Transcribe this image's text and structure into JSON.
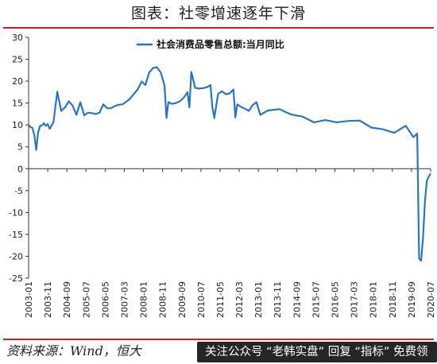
{
  "title": "图表：社零增速逐年下滑",
  "source": "资料来源：Wind，恒大",
  "watermark": "关注公众号 “老韩实盘” 回复 “指标” 免费领",
  "colors": {
    "line": "#2e75b6",
    "accent": "#c8202a",
    "watermark_bg": "#262626"
  },
  "chart_data": {
    "type": "line",
    "ylim": [
      -25,
      30
    ],
    "yticks": [
      30,
      25,
      20,
      15,
      10,
      5,
      0,
      -5,
      -10,
      -15,
      -20,
      -25
    ],
    "x_range": [
      "2003-01",
      "2020-07"
    ],
    "xticks": [
      "2003-01",
      "2003-11",
      "2004-09",
      "2005-07",
      "2006-05",
      "2007-03",
      "2008-01",
      "2008-11",
      "2009-09",
      "2010-07",
      "2011-05",
      "2012-03",
      "2013-01",
      "2013-11",
      "2014-09",
      "2015-07",
      "2016-05",
      "2017-03",
      "2018-01",
      "2018-11",
      "2019-09",
      "2020-07"
    ],
    "grid": false,
    "legend_position": "top",
    "series": [
      {
        "name": "社会消费品零售总额:当月同比",
        "x": [
          "2003-01",
          "2003-02",
          "2003-03",
          "2003-04",
          "2003-05",
          "2003-06",
          "2003-07",
          "2003-08",
          "2003-09",
          "2003-10",
          "2003-11",
          "2003-12",
          "2004-02",
          "2004-04",
          "2004-06",
          "2004-08",
          "2004-10",
          "2004-12",
          "2005-02",
          "2005-04",
          "2005-06",
          "2005-08",
          "2005-10",
          "2005-12",
          "2006-02",
          "2006-04",
          "2006-06",
          "2006-08",
          "2006-10",
          "2006-12",
          "2007-02",
          "2007-04",
          "2007-06",
          "2007-08",
          "2007-10",
          "2007-12",
          "2008-02",
          "2008-04",
          "2008-06",
          "2008-08",
          "2008-10",
          "2008-12",
          "2009-01",
          "2009-02",
          "2009-04",
          "2009-06",
          "2009-08",
          "2009-10",
          "2009-12",
          "2010-01",
          "2010-02",
          "2010-04",
          "2010-06",
          "2010-08",
          "2010-10",
          "2010-12",
          "2011-01",
          "2011-02",
          "2011-04",
          "2011-06",
          "2011-08",
          "2011-10",
          "2011-12",
          "2012-01",
          "2012-02",
          "2012-04",
          "2012-06",
          "2012-08",
          "2012-10",
          "2012-12",
          "2013-02",
          "2013-06",
          "2013-12",
          "2014-06",
          "2014-12",
          "2015-06",
          "2015-12",
          "2016-06",
          "2016-12",
          "2017-06",
          "2017-12",
          "2018-06",
          "2018-12",
          "2019-06",
          "2019-10",
          "2019-12",
          "2020-01",
          "2020-02",
          "2020-03",
          "2020-04",
          "2020-05",
          "2020-06",
          "2020-07"
        ],
        "values": [
          10,
          9.5,
          9.3,
          7.7,
          4.3,
          8.3,
          9.8,
          9.9,
          10.4,
          9.8,
          10.2,
          9.1,
          10.6,
          17.6,
          13.2,
          14.0,
          15.4,
          14.4,
          12.3,
          15.2,
          12.2,
          12.8,
          12.7,
          12.5,
          12.8,
          14.7,
          13.8,
          13.8,
          14.3,
          14.6,
          14.7,
          15.3,
          16.0,
          17.1,
          18.1,
          19.9,
          19.1,
          22.0,
          23.0,
          23.2,
          22.0,
          19.0,
          11.6,
          15.2,
          14.8,
          15.0,
          15.4,
          16.2,
          17.5,
          14.0,
          22.1,
          18.5,
          18.3,
          18.4,
          18.6,
          19.1,
          14.0,
          11.6,
          17.1,
          17.7,
          17.0,
          17.2,
          18.1,
          11.7,
          14.7,
          14.1,
          13.7,
          13.2,
          14.5,
          15.2,
          12.3,
          13.3,
          13.6,
          12.4,
          11.9,
          10.6,
          11.1,
          10.6,
          10.9,
          11.0,
          9.4,
          9.0,
          8.2,
          9.8,
          7.2,
          8.0,
          -20.5,
          -21.0,
          -15.8,
          -7.5,
          -2.8,
          -1.8,
          -1.1
        ]
      }
    ]
  }
}
